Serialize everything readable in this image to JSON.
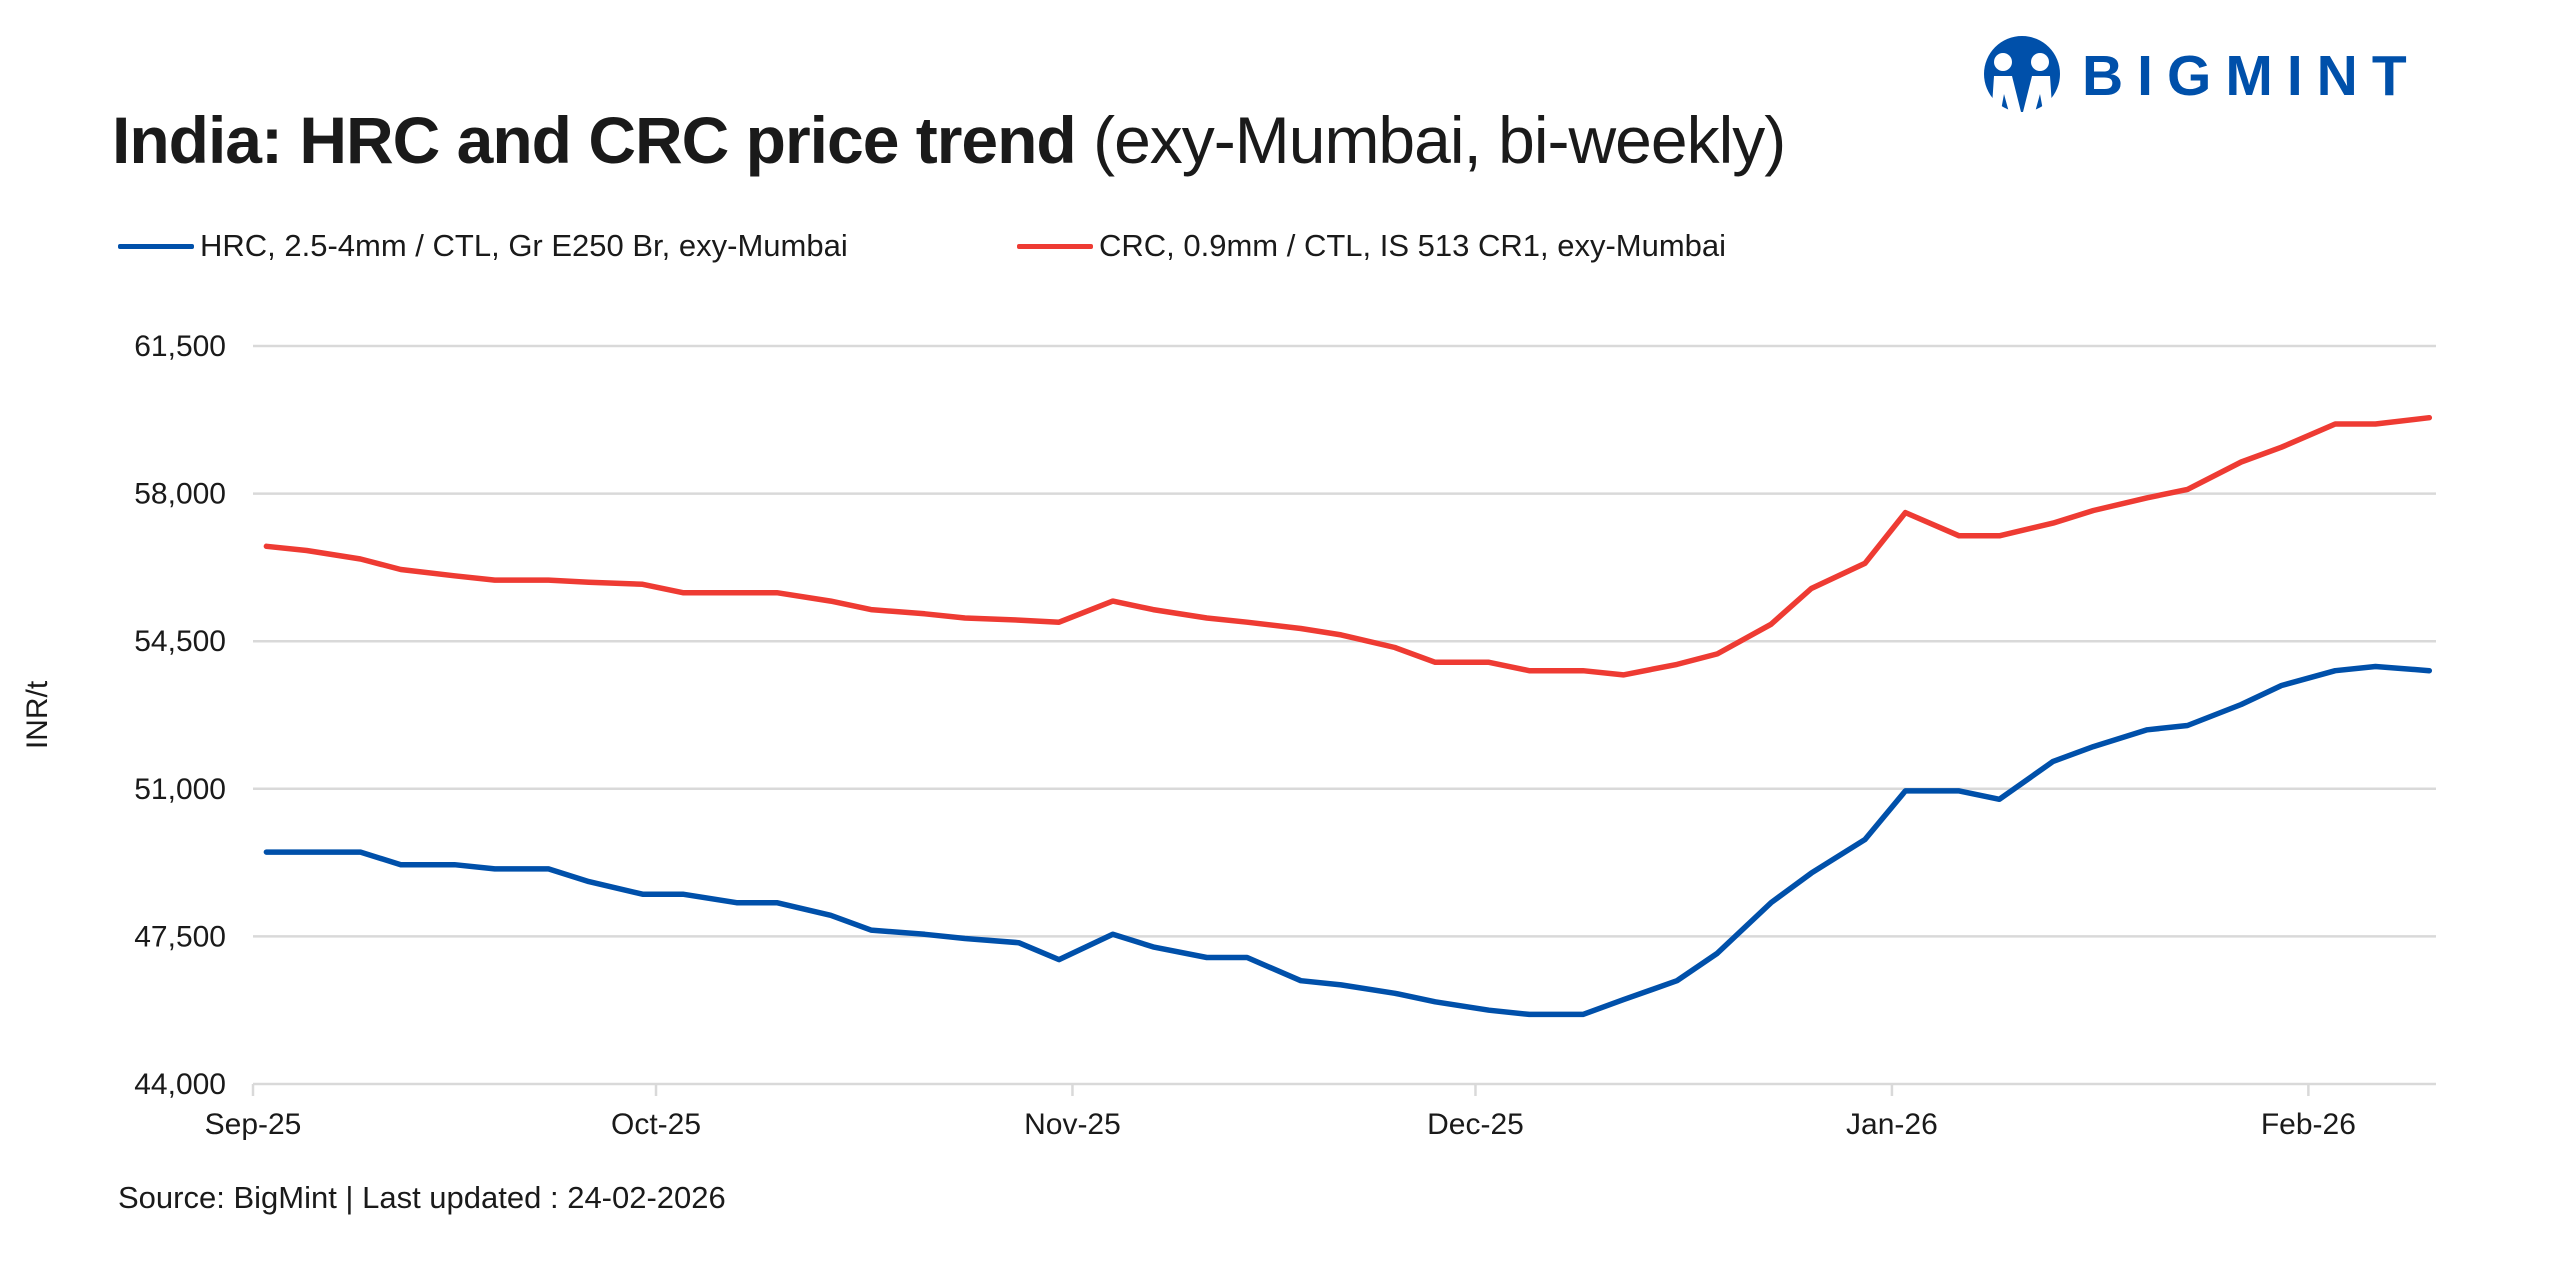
{
  "logo": {
    "text": "BIGMINT",
    "color": "#0050AA"
  },
  "title": {
    "bold": "India: HRC and CRC price trend",
    "regular": "(exy-Mumbai, bi-weekly)"
  },
  "source": "Source: BigMint | Last updated : 24-02-2026",
  "chart_data": {
    "type": "line",
    "title": "India: HRC and CRC price trend (exy-Mumbai, bi-weekly)",
    "ylabel": "INR/t",
    "xlabel": "",
    "ylim": [
      44000,
      61500
    ],
    "yticks": [
      44000,
      47500,
      51000,
      54500,
      58000,
      61500
    ],
    "ytick_labels": [
      "44,000",
      "47,500",
      "51,000",
      "54,500",
      "58,000",
      "61,500"
    ],
    "xticks": [
      "2025-09-01",
      "2025-10-01",
      "2025-11-01",
      "2025-12-01",
      "2026-01-01",
      "2026-02-01"
    ],
    "xtick_labels": [
      "Sep-25",
      "Oct-25",
      "Nov-25",
      "Dec-25",
      "Jan-26",
      "Feb-26"
    ],
    "xlim": [
      "2025-09-01",
      "2026-02-10"
    ],
    "grid": "horizontal",
    "legend_position": "top",
    "x": [
      "2025-09-02",
      "2025-09-05",
      "2025-09-09",
      "2025-09-12",
      "2025-09-16",
      "2025-09-19",
      "2025-09-23",
      "2025-09-26",
      "2025-09-30",
      "2025-10-03",
      "2025-10-07",
      "2025-10-10",
      "2025-10-14",
      "2025-10-17",
      "2025-10-21",
      "2025-10-24",
      "2025-10-28",
      "2025-10-31",
      "2025-11-04",
      "2025-11-07",
      "2025-11-11",
      "2025-11-14",
      "2025-11-18",
      "2025-11-21",
      "2025-11-25",
      "2025-11-28",
      "2025-12-02",
      "2025-12-05",
      "2025-12-09",
      "2025-12-12",
      "2025-12-16",
      "2025-12-19",
      "2025-12-23",
      "2025-12-26",
      "2025-12-30",
      "2026-01-02",
      "2026-01-06",
      "2026-01-09",
      "2026-01-13",
      "2026-01-16",
      "2026-01-20",
      "2026-01-23",
      "2026-01-27",
      "2026-01-30",
      "2026-02-03",
      "2026-02-06",
      "2026-02-10"
    ],
    "series": [
      {
        "name": "HRC, 2.5-4mm / CTL, Gr E250 Br, exy-Mumbai",
        "color": "#0050AA",
        "values": [
          49500,
          49500,
          49500,
          49200,
          49200,
          49100,
          49100,
          48800,
          48500,
          48500,
          48300,
          48300,
          48000,
          47650,
          47550,
          47450,
          47350,
          46950,
          47550,
          47250,
          47000,
          47000,
          46450,
          46350,
          46150,
          45950,
          45750,
          45650,
          45650,
          46000,
          46450,
          47100,
          48300,
          49000,
          49800,
          50950,
          50950,
          50750,
          51650,
          52000,
          52400,
          52500,
          53000,
          53450,
          53800,
          53900,
          53800
        ]
      },
      {
        "name": "CRC, 0.9mm / CTL, IS 513 CR1, exy-Mumbai",
        "color": "#EE3B33",
        "values": [
          56750,
          56650,
          56450,
          56200,
          56050,
          55950,
          55950,
          55900,
          55850,
          55650,
          55650,
          55650,
          55450,
          55250,
          55150,
          55050,
          55000,
          54950,
          55450,
          55250,
          55050,
          54950,
          54800,
          54650,
          54350,
          54000,
          54000,
          53800,
          53800,
          53700,
          53950,
          54200,
          54900,
          55750,
          56350,
          57550,
          57000,
          57000,
          57300,
          57600,
          57900,
          58100,
          58750,
          59100,
          59650,
          59650,
          59800
        ]
      }
    ]
  }
}
